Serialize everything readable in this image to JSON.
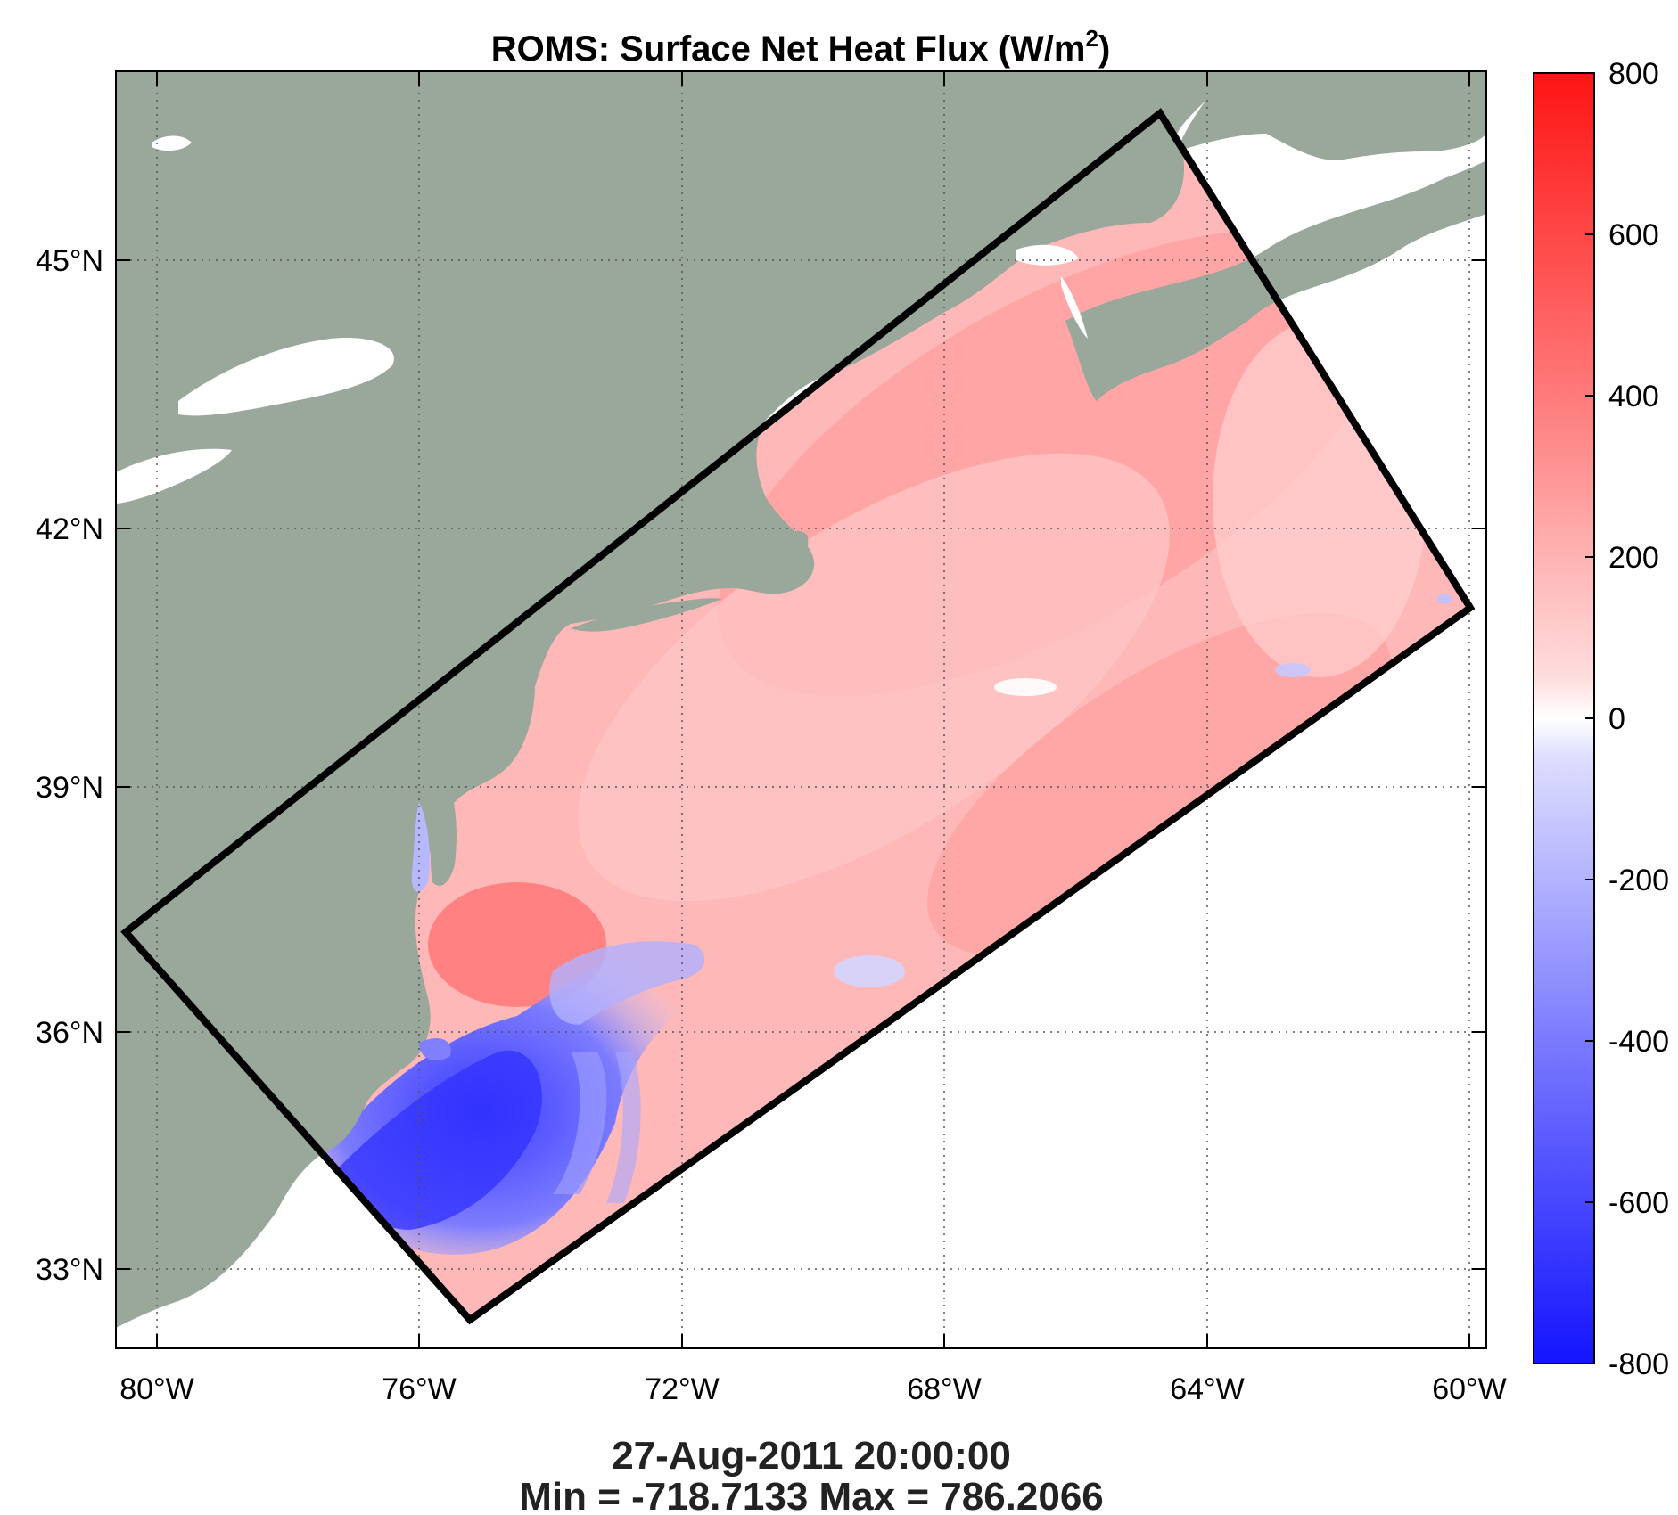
{
  "title": {
    "main": "ROMS: Surface Net Heat Flux (W/m",
    "sup": "2",
    "close": ")"
  },
  "map": {
    "lon_ticks": [
      "80°W",
      "76°W",
      "72°W",
      "68°W",
      "64°W",
      "60°W"
    ],
    "lat_ticks": [
      "45°N",
      "42°N",
      "39°N",
      "36°N",
      "33°N"
    ],
    "land_color": "#9aa79b",
    "domain_outline_color": "#000000"
  },
  "colorbar": {
    "ticks": [
      "800",
      "600",
      "400",
      "200",
      "0",
      "-200",
      "-400",
      "-600",
      "-800"
    ],
    "cmap": [
      "#1010ff",
      "#ffffff",
      "#ff1010"
    ]
  },
  "footer": {
    "timestamp": "27-Aug-2011 20:00:00",
    "stats": "Min = -718.7133  Max = 786.2066"
  }
}
